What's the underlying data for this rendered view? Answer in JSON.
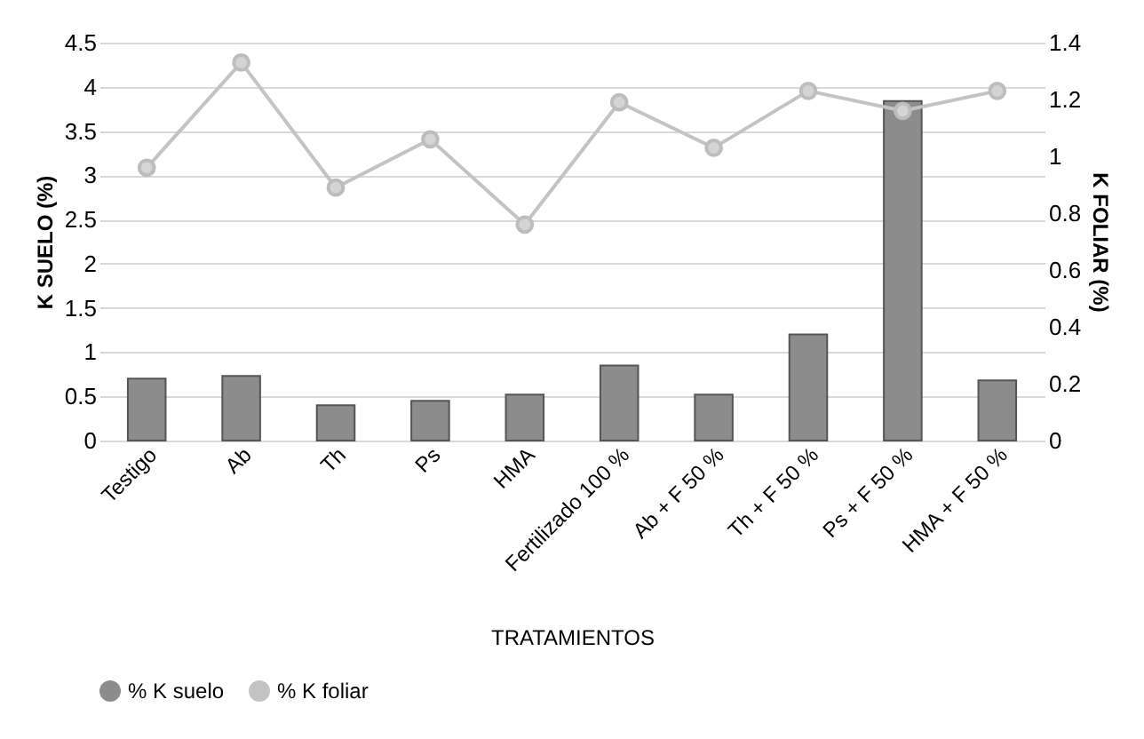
{
  "chart_data": {
    "type": "bar",
    "xlabel": "TRATAMIENTOS",
    "ylabel": "K SUELO (%)",
    "y2label": "K FOLIAR (%)",
    "categories": [
      "Testigo",
      "Ab",
      "Th",
      "Ps",
      "HMA",
      "Fertilizado 100 %",
      "Ab + F 50 %",
      "Th + F 50 %",
      "Ps + F 50 %",
      "HMA + F 50 %"
    ],
    "series": [
      {
        "name": "% K suelo",
        "color": "#8c8c8c",
        "values": [
          0.7,
          0.73,
          0.4,
          0.45,
          0.52,
          0.85,
          0.52,
          1.2,
          3.84,
          0.68
        ]
      },
      {
        "name": "% K foliar",
        "type": "line",
        "axis": "y2",
        "color": "#c3c3c3",
        "marker": "circle",
        "line_style": "solid",
        "values": [
          0.96,
          1.33,
          0.89,
          1.06,
          0.76,
          1.19,
          1.03,
          1.23,
          1.16,
          1.23
        ]
      }
    ],
    "ylim": [
      0,
      4.5
    ],
    "yticks": [
      0,
      0.5,
      1,
      1.5,
      2,
      2.5,
      3,
      3.5,
      4,
      4.5
    ],
    "y2lim": [
      0,
      1.4
    ],
    "y2ticks": [
      0,
      0.2,
      0.4,
      0.6,
      0.8,
      1,
      1.2,
      1.4
    ],
    "grid": "y",
    "legend": "bottom"
  }
}
